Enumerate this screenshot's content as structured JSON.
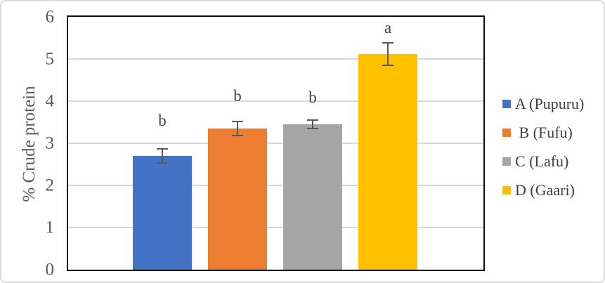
{
  "chart_data": {
    "type": "bar",
    "title": "",
    "xlabel": "",
    "ylabel": "% Crude protein",
    "ylim": [
      0,
      6
    ],
    "ytick_step": 1,
    "ytick_labels": [
      "0",
      "1",
      "2",
      "3",
      "4",
      "5",
      "6"
    ],
    "grid": "horizontal-major",
    "legend_position": "right",
    "categories": [
      "A (Pupuru)",
      "B (Fufu)",
      "C (Lafu)",
      "D (Gaari)"
    ],
    "values": [
      2.7,
      3.35,
      3.45,
      5.12
    ],
    "error_bars": [
      0.18,
      0.18,
      0.12,
      0.28
    ],
    "sig_letters": [
      "b",
      "b",
      "b",
      "a"
    ],
    "bar_colors": [
      "#4472C4",
      "#ED7D31",
      "#A5A5A5",
      "#FFC000"
    ],
    "legend_labels": [
      "A (Pupuru)",
      " B (Fufu)",
      "C (Lafu)",
      "D (Gaari)"
    ],
    "theme": {
      "gridline_color": "#d9d9d9",
      "plot_border_color": "#0d0d0d",
      "error_bar_color": "#595959",
      "axis_text_color": "#595959",
      "letter_text_color": "#404040",
      "figure_border_color": "#d9d9d9",
      "background": "#ffffff"
    }
  }
}
